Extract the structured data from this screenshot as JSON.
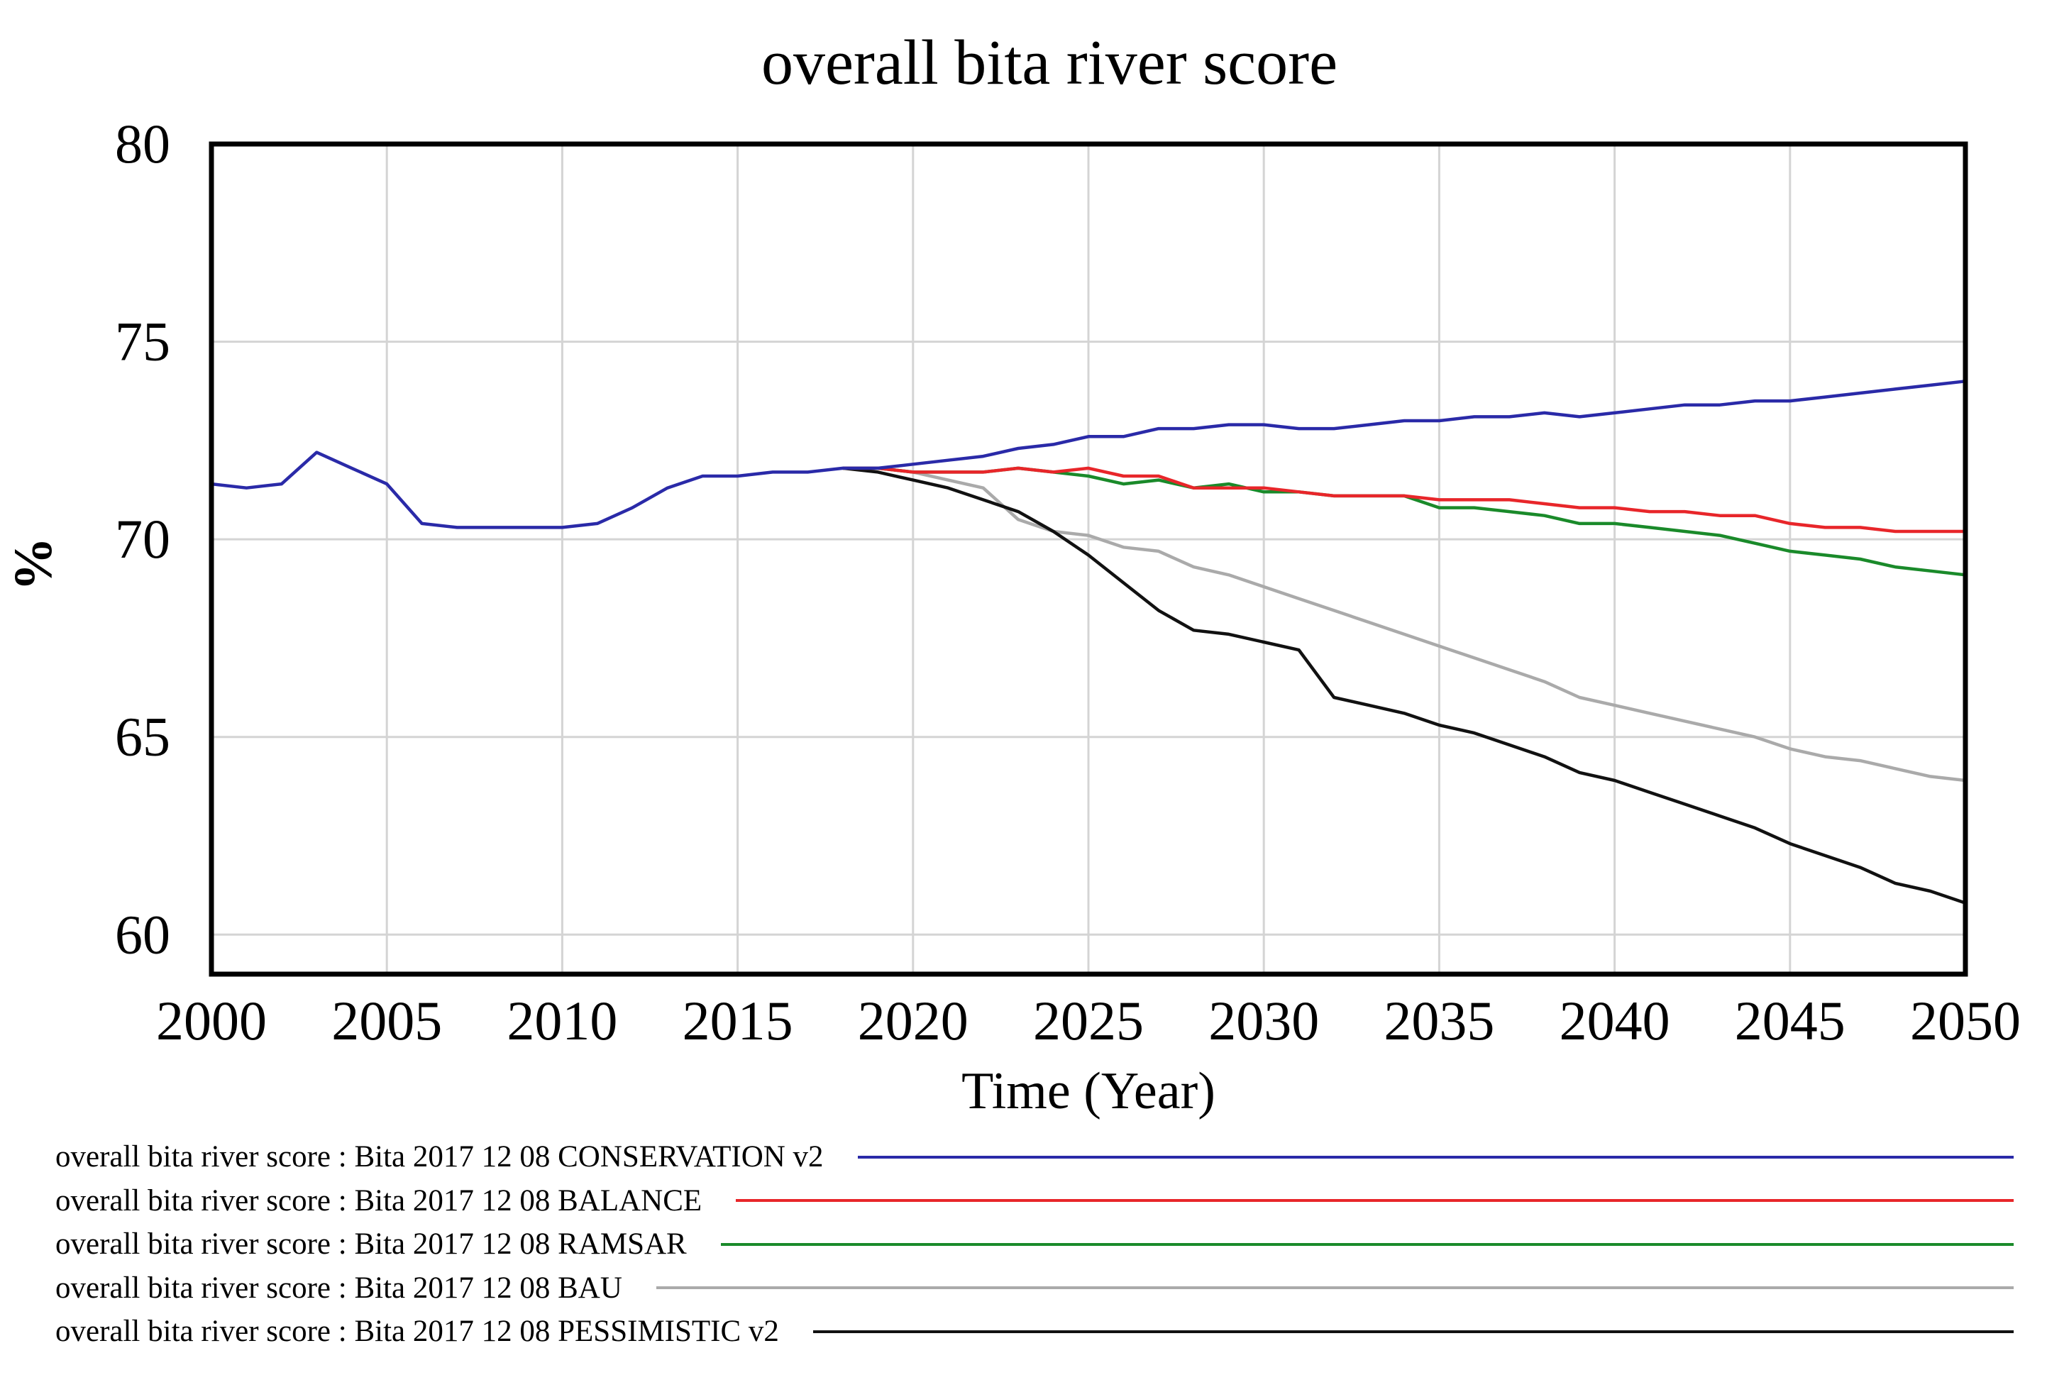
{
  "chart_data": {
    "type": "line",
    "title": "overall bita river score",
    "xlabel": "Time (Year)",
    "ylabel": "%",
    "xlim": [
      2000,
      2050
    ],
    "ylim": [
      59,
      80
    ],
    "x_ticks": [
      "2000",
      "2005",
      "2010",
      "2015",
      "2020",
      "2025",
      "2030",
      "2035",
      "2040",
      "2045",
      "2050"
    ],
    "y_ticks": [
      "80",
      "75",
      "70",
      "65",
      "60"
    ],
    "grid": true,
    "series": [
      {
        "name": "BAU",
        "legend": "overall bita river score : Bita 2017 12 08 BAU",
        "color": "#aaaaaa",
        "points": [
          [
            2018,
            71.8
          ],
          [
            2019,
            71.8
          ],
          [
            2020,
            71.7
          ],
          [
            2021,
            71.5
          ],
          [
            2022,
            71.3
          ],
          [
            2023,
            70.5
          ],
          [
            2024,
            70.2
          ],
          [
            2025,
            70.1
          ],
          [
            2026,
            69.8
          ],
          [
            2027,
            69.7
          ],
          [
            2028,
            69.3
          ],
          [
            2029,
            69.1
          ],
          [
            2030,
            68.8
          ],
          [
            2031,
            68.5
          ],
          [
            2032,
            68.2
          ],
          [
            2033,
            67.9
          ],
          [
            2034,
            67.6
          ],
          [
            2035,
            67.3
          ],
          [
            2036,
            67.0
          ],
          [
            2037,
            66.7
          ],
          [
            2038,
            66.4
          ],
          [
            2039,
            66.0
          ],
          [
            2040,
            65.8
          ],
          [
            2041,
            65.6
          ],
          [
            2042,
            65.4
          ],
          [
            2043,
            65.2
          ],
          [
            2044,
            65.0
          ],
          [
            2045,
            64.7
          ],
          [
            2046,
            64.5
          ],
          [
            2047,
            64.4
          ],
          [
            2048,
            64.2
          ],
          [
            2049,
            64.0
          ],
          [
            2050,
            63.9
          ]
        ]
      },
      {
        "name": "PESSIMISTIC v2",
        "legend": "overall bita river score : Bita 2017 12 08 PESSIMISTIC v2",
        "color": "#111111",
        "points": [
          [
            2018,
            71.8
          ],
          [
            2019,
            71.7
          ],
          [
            2020,
            71.5
          ],
          [
            2021,
            71.3
          ],
          [
            2022,
            71.0
          ],
          [
            2023,
            70.7
          ],
          [
            2024,
            70.2
          ],
          [
            2025,
            69.6
          ],
          [
            2026,
            68.9
          ],
          [
            2027,
            68.2
          ],
          [
            2028,
            67.7
          ],
          [
            2029,
            67.6
          ],
          [
            2030,
            67.4
          ],
          [
            2031,
            67.2
          ],
          [
            2032,
            66.0
          ],
          [
            2033,
            65.8
          ],
          [
            2034,
            65.6
          ],
          [
            2035,
            65.3
          ],
          [
            2036,
            65.1
          ],
          [
            2037,
            64.8
          ],
          [
            2038,
            64.5
          ],
          [
            2039,
            64.1
          ],
          [
            2040,
            63.9
          ],
          [
            2041,
            63.6
          ],
          [
            2042,
            63.3
          ],
          [
            2043,
            63.0
          ],
          [
            2044,
            62.7
          ],
          [
            2045,
            62.3
          ],
          [
            2046,
            62.0
          ],
          [
            2047,
            61.7
          ],
          [
            2048,
            61.3
          ],
          [
            2049,
            61.1
          ],
          [
            2050,
            60.8
          ]
        ]
      },
      {
        "name": "RAMSAR",
        "legend": "overall bita river score : Bita 2017 12 08 RAMSAR",
        "color": "#1a8a2a",
        "points": [
          [
            2018,
            71.8
          ],
          [
            2019,
            71.8
          ],
          [
            2020,
            71.7
          ],
          [
            2021,
            71.7
          ],
          [
            2022,
            71.7
          ],
          [
            2023,
            71.8
          ],
          [
            2024,
            71.7
          ],
          [
            2025,
            71.6
          ],
          [
            2026,
            71.4
          ],
          [
            2027,
            71.5
          ],
          [
            2028,
            71.3
          ],
          [
            2029,
            71.4
          ],
          [
            2030,
            71.2
          ],
          [
            2031,
            71.2
          ],
          [
            2032,
            71.1
          ],
          [
            2033,
            71.1
          ],
          [
            2034,
            71.1
          ],
          [
            2035,
            70.8
          ],
          [
            2036,
            70.8
          ],
          [
            2037,
            70.7
          ],
          [
            2038,
            70.6
          ],
          [
            2039,
            70.4
          ],
          [
            2040,
            70.4
          ],
          [
            2041,
            70.3
          ],
          [
            2042,
            70.2
          ],
          [
            2043,
            70.1
          ],
          [
            2044,
            69.9
          ],
          [
            2045,
            69.7
          ],
          [
            2046,
            69.6
          ],
          [
            2047,
            69.5
          ],
          [
            2048,
            69.3
          ],
          [
            2049,
            69.2
          ],
          [
            2050,
            69.1
          ]
        ]
      },
      {
        "name": "BALANCE",
        "legend": "overall bita river score : Bita 2017 12 08 BALANCE",
        "color": "#e8262a",
        "points": [
          [
            2018,
            71.8
          ],
          [
            2019,
            71.8
          ],
          [
            2020,
            71.7
          ],
          [
            2021,
            71.7
          ],
          [
            2022,
            71.7
          ],
          [
            2023,
            71.8
          ],
          [
            2024,
            71.7
          ],
          [
            2025,
            71.8
          ],
          [
            2026,
            71.6
          ],
          [
            2027,
            71.6
          ],
          [
            2028,
            71.3
          ],
          [
            2029,
            71.3
          ],
          [
            2030,
            71.3
          ],
          [
            2031,
            71.2
          ],
          [
            2032,
            71.1
          ],
          [
            2033,
            71.1
          ],
          [
            2034,
            71.1
          ],
          [
            2035,
            71.0
          ],
          [
            2036,
            71.0
          ],
          [
            2037,
            71.0
          ],
          [
            2038,
            70.9
          ],
          [
            2039,
            70.8
          ],
          [
            2040,
            70.8
          ],
          [
            2041,
            70.7
          ],
          [
            2042,
            70.7
          ],
          [
            2043,
            70.6
          ],
          [
            2044,
            70.6
          ],
          [
            2045,
            70.4
          ],
          [
            2046,
            70.3
          ],
          [
            2047,
            70.3
          ],
          [
            2048,
            70.2
          ],
          [
            2049,
            70.2
          ],
          [
            2050,
            70.2
          ]
        ]
      },
      {
        "name": "CONSERVATION v2",
        "legend": "overall bita river score : Bita 2017 12 08 CONSERVATION v2",
        "color": "#2a2aa8",
        "points": [
          [
            2000,
            71.4
          ],
          [
            2001,
            71.3
          ],
          [
            2002,
            71.4
          ],
          [
            2003,
            72.2
          ],
          [
            2004,
            71.8
          ],
          [
            2005,
            71.4
          ],
          [
            2006,
            70.4
          ],
          [
            2007,
            70.3
          ],
          [
            2008,
            70.3
          ],
          [
            2009,
            70.3
          ],
          [
            2010,
            70.3
          ],
          [
            2011,
            70.4
          ],
          [
            2012,
            70.8
          ],
          [
            2013,
            71.3
          ],
          [
            2014,
            71.6
          ],
          [
            2015,
            71.6
          ],
          [
            2016,
            71.7
          ],
          [
            2017,
            71.7
          ],
          [
            2018,
            71.8
          ],
          [
            2019,
            71.8
          ],
          [
            2020,
            71.9
          ],
          [
            2021,
            72.0
          ],
          [
            2022,
            72.1
          ],
          [
            2023,
            72.3
          ],
          [
            2024,
            72.4
          ],
          [
            2025,
            72.6
          ],
          [
            2026,
            72.6
          ],
          [
            2027,
            72.8
          ],
          [
            2028,
            72.8
          ],
          [
            2029,
            72.9
          ],
          [
            2030,
            72.9
          ],
          [
            2031,
            72.8
          ],
          [
            2032,
            72.8
          ],
          [
            2033,
            72.9
          ],
          [
            2034,
            73.0
          ],
          [
            2035,
            73.0
          ],
          [
            2036,
            73.1
          ],
          [
            2037,
            73.1
          ],
          [
            2038,
            73.2
          ],
          [
            2039,
            73.1
          ],
          [
            2040,
            73.2
          ],
          [
            2041,
            73.3
          ],
          [
            2042,
            73.4
          ],
          [
            2043,
            73.4
          ],
          [
            2044,
            73.5
          ],
          [
            2045,
            73.5
          ],
          [
            2046,
            73.6
          ],
          [
            2047,
            73.7
          ],
          [
            2048,
            73.8
          ],
          [
            2049,
            73.9
          ],
          [
            2050,
            74.0
          ]
        ]
      }
    ],
    "legend_order": [
      4,
      3,
      2,
      0,
      1
    ]
  }
}
